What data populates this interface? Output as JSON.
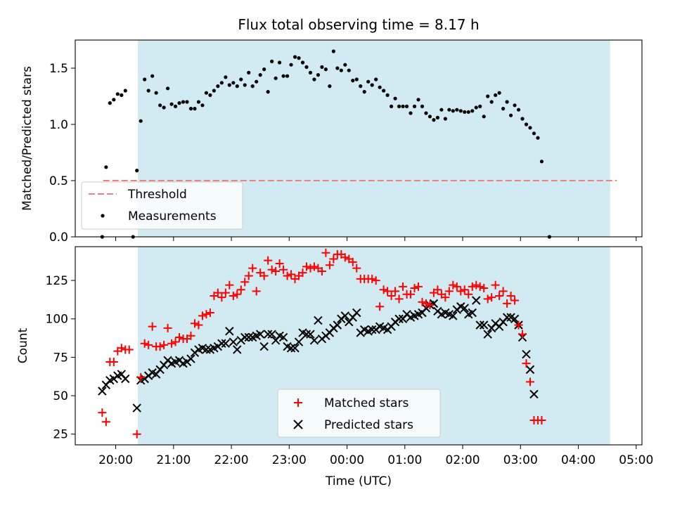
{
  "title": "Flux total observing time = 8.17 h",
  "colors": {
    "shade": "#add8e6",
    "threshold": "#f08080",
    "measurements": "#000000",
    "matched": "#ff0000",
    "predicted": "#000000"
  },
  "chart_data": [
    {
      "type": "scatter",
      "ylabel": "Matched/Predicted stars",
      "ylim": [
        0,
        1.75
      ],
      "yticks": [
        "0.0",
        "0.5",
        "1.0",
        "1.5"
      ],
      "xlim_hours": [
        19.3,
        29.1
      ],
      "shaded_x": [
        "20:23",
        "04:33"
      ],
      "legend": {
        "placement": "lower-left",
        "threshold": "Threshold",
        "measurements": "Measurements"
      },
      "threshold": {
        "value": 0.5,
        "x": [
          "19:47",
          "04:40"
        ]
      },
      "measurements": [
        [
          "19:46",
          0.0
        ],
        [
          "19:50",
          0.62
        ],
        [
          "19:54",
          1.19
        ],
        [
          "19:58",
          1.22
        ],
        [
          "20:02",
          1.27
        ],
        [
          "20:06",
          1.26
        ],
        [
          "20:10",
          1.3
        ],
        [
          "20:18",
          0.0
        ],
        [
          "20:22",
          0.59
        ],
        [
          "20:26",
          1.03
        ],
        [
          "20:30",
          1.4
        ],
        [
          "20:34",
          1.3
        ],
        [
          "20:38",
          1.43
        ],
        [
          "20:42",
          1.28
        ],
        [
          "20:46",
          1.17
        ],
        [
          "20:50",
          1.15
        ],
        [
          "20:54",
          1.32
        ],
        [
          "20:58",
          1.18
        ],
        [
          "21:02",
          1.16
        ],
        [
          "21:06",
          1.19
        ],
        [
          "21:10",
          1.2
        ],
        [
          "21:14",
          1.2
        ],
        [
          "21:18",
          1.14
        ],
        [
          "21:22",
          1.14
        ],
        [
          "21:26",
          1.2
        ],
        [
          "21:30",
          1.17
        ],
        [
          "21:34",
          1.28
        ],
        [
          "21:38",
          1.26
        ],
        [
          "21:42",
          1.3
        ],
        [
          "21:46",
          1.34
        ],
        [
          "21:50",
          1.37
        ],
        [
          "21:54",
          1.42
        ],
        [
          "21:58",
          1.35
        ],
        [
          "22:02",
          1.37
        ],
        [
          "22:06",
          1.34
        ],
        [
          "22:10",
          1.4
        ],
        [
          "22:14",
          1.35
        ],
        [
          "22:18",
          1.46
        ],
        [
          "22:22",
          1.34
        ],
        [
          "22:26",
          1.38
        ],
        [
          "22:30",
          1.44
        ],
        [
          "22:34",
          1.49
        ],
        [
          "22:38",
          1.29
        ],
        [
          "22:42",
          1.56
        ],
        [
          "22:46",
          1.41
        ],
        [
          "22:50",
          1.55
        ],
        [
          "22:54",
          1.43
        ],
        [
          "22:58",
          1.43
        ],
        [
          "23:02",
          1.53
        ],
        [
          "23:06",
          1.6
        ],
        [
          "23:10",
          1.59
        ],
        [
          "23:14",
          1.55
        ],
        [
          "23:18",
          1.51
        ],
        [
          "23:22",
          1.46
        ],
        [
          "23:26",
          1.4
        ],
        [
          "23:30",
          1.44
        ],
        [
          "23:34",
          1.51
        ],
        [
          "23:38",
          1.49
        ],
        [
          "23:42",
          1.34
        ],
        [
          "23:46",
          1.65
        ],
        [
          "23:50",
          1.5
        ],
        [
          "23:54",
          1.48
        ],
        [
          "23:58",
          1.53
        ],
        [
          "00:02",
          1.48
        ],
        [
          "00:06",
          1.39
        ],
        [
          "00:10",
          1.4
        ],
        [
          "00:14",
          1.34
        ],
        [
          "00:18",
          1.29
        ],
        [
          "00:22",
          1.38
        ],
        [
          "00:26",
          1.35
        ],
        [
          "00:30",
          1.4
        ],
        [
          "00:34",
          1.33
        ],
        [
          "00:38",
          1.3
        ],
        [
          "00:42",
          1.26
        ],
        [
          "00:46",
          1.16
        ],
        [
          "00:50",
          1.23
        ],
        [
          "00:54",
          1.16
        ],
        [
          "00:58",
          1.16
        ],
        [
          "01:02",
          1.16
        ],
        [
          "01:06",
          1.1
        ],
        [
          "01:10",
          1.16
        ],
        [
          "01:14",
          1.22
        ],
        [
          "01:18",
          1.16
        ],
        [
          "01:22",
          1.1
        ],
        [
          "01:26",
          1.07
        ],
        [
          "01:30",
          1.04
        ],
        [
          "01:34",
          1.06
        ],
        [
          "01:38",
          1.13
        ],
        [
          "01:42",
          1.05
        ],
        [
          "01:46",
          1.13
        ],
        [
          "01:50",
          1.12
        ],
        [
          "01:54",
          1.13
        ],
        [
          "01:58",
          1.12
        ],
        [
          "02:02",
          1.11
        ],
        [
          "02:06",
          1.11
        ],
        [
          "02:10",
          1.12
        ],
        [
          "02:14",
          1.15
        ],
        [
          "02:18",
          1.16
        ],
        [
          "02:22",
          1.07
        ],
        [
          "02:26",
          1.25
        ],
        [
          "02:30",
          1.2
        ],
        [
          "02:34",
          1.26
        ],
        [
          "02:38",
          1.28
        ],
        [
          "02:42",
          1.14
        ],
        [
          "02:46",
          1.2
        ],
        [
          "02:50",
          1.08
        ],
        [
          "02:54",
          1.17
        ],
        [
          "02:58",
          1.13
        ],
        [
          "03:02",
          1.05
        ],
        [
          "03:06",
          1.0
        ],
        [
          "03:10",
          0.97
        ],
        [
          "03:14",
          0.92
        ],
        [
          "03:18",
          0.88
        ],
        [
          "03:22",
          0.67
        ],
        [
          "03:30",
          0.0
        ]
      ]
    },
    {
      "type": "scatter",
      "xlabel": "Time (UTC)",
      "ylabel": "Count",
      "ylim": [
        18,
        147
      ],
      "yticks": [
        "25",
        "50",
        "75",
        "100",
        "125"
      ],
      "xticks": [
        "20:00",
        "21:00",
        "22:00",
        "23:00",
        "00:00",
        "01:00",
        "02:00",
        "03:00",
        "04:00",
        "05:00"
      ],
      "xlim_hours": [
        19.3,
        29.1
      ],
      "shaded_x": [
        "20:23",
        "04:33"
      ],
      "legend": {
        "placement": "lower-center",
        "matched": "Matched stars",
        "predicted": "Predicted stars"
      },
      "matched_stars": [
        [
          "19:46",
          39
        ],
        [
          "19:50",
          33
        ],
        [
          "19:54",
          72
        ],
        [
          "19:58",
          72
        ],
        [
          "20:02",
          79
        ],
        [
          "20:06",
          81
        ],
        [
          "20:10",
          80
        ],
        [
          "20:14",
          80
        ],
        [
          "20:22",
          25
        ],
        [
          "20:26",
          62
        ],
        [
          "20:30",
          84
        ],
        [
          "20:34",
          83
        ],
        [
          "20:38",
          95
        ],
        [
          "20:42",
          82
        ],
        [
          "20:46",
          82
        ],
        [
          "20:50",
          83
        ],
        [
          "20:54",
          94
        ],
        [
          "20:58",
          84
        ],
        [
          "21:02",
          85
        ],
        [
          "21:06",
          88
        ],
        [
          "21:10",
          87
        ],
        [
          "21:14",
          87
        ],
        [
          "21:18",
          89
        ],
        [
          "21:22",
          97
        ],
        [
          "21:26",
          96
        ],
        [
          "21:30",
          102
        ],
        [
          "21:34",
          103
        ],
        [
          "21:38",
          104
        ],
        [
          "21:42",
          115
        ],
        [
          "21:46",
          117
        ],
        [
          "21:50",
          114
        ],
        [
          "21:54",
          117
        ],
        [
          "21:58",
          122
        ],
        [
          "22:02",
          115
        ],
        [
          "22:06",
          116
        ],
        [
          "22:10",
          119
        ],
        [
          "22:14",
          124
        ],
        [
          "22:18",
          128
        ],
        [
          "22:22",
          133
        ],
        [
          "22:26",
          118
        ],
        [
          "22:30",
          130
        ],
        [
          "22:34",
          128
        ],
        [
          "22:38",
          138
        ],
        [
          "22:42",
          132
        ],
        [
          "22:46",
          131
        ],
        [
          "22:50",
          136
        ],
        [
          "22:54",
          132
        ],
        [
          "22:58",
          128
        ],
        [
          "23:02",
          129
        ],
        [
          "23:06",
          126
        ],
        [
          "23:10",
          128
        ],
        [
          "23:14",
          130
        ],
        [
          "23:18",
          134
        ],
        [
          "23:22",
          133
        ],
        [
          "23:26",
          134
        ],
        [
          "23:30",
          133
        ],
        [
          "23:34",
          131
        ],
        [
          "23:38",
          143
        ],
        [
          "23:42",
          135
        ],
        [
          "23:46",
          139
        ],
        [
          "23:50",
          142
        ],
        [
          "23:54",
          142
        ],
        [
          "23:58",
          140
        ],
        [
          "00:02",
          139
        ],
        [
          "00:06",
          137
        ],
        [
          "00:10",
          133
        ],
        [
          "00:14",
          126
        ],
        [
          "00:18",
          126
        ],
        [
          "00:22",
          126
        ],
        [
          "00:26",
          126
        ],
        [
          "00:30",
          125
        ],
        [
          "00:34",
          108
        ],
        [
          "00:38",
          119
        ],
        [
          "00:42",
          118
        ],
        [
          "00:46",
          115
        ],
        [
          "00:50",
          118
        ],
        [
          "00:54",
          113
        ],
        [
          "00:58",
          121
        ],
        [
          "01:02",
          116
        ],
        [
          "01:06",
          116
        ],
        [
          "01:10",
          120
        ],
        [
          "01:14",
          121
        ],
        [
          "01:18",
          111
        ],
        [
          "01:22",
          110
        ],
        [
          "01:26",
          109
        ],
        [
          "01:30",
          117
        ],
        [
          "01:34",
          119
        ],
        [
          "01:38",
          116
        ],
        [
          "01:42",
          114
        ],
        [
          "01:46",
          118
        ],
        [
          "01:50",
          122
        ],
        [
          "01:54",
          121
        ],
        [
          "01:58",
          118
        ],
        [
          "02:02",
          119
        ],
        [
          "02:06",
          116
        ],
        [
          "02:10",
          121
        ],
        [
          "02:14",
          122
        ],
        [
          "02:18",
          121
        ],
        [
          "02:22",
          120
        ],
        [
          "02:26",
          113
        ],
        [
          "02:30",
          114
        ],
        [
          "02:34",
          122
        ],
        [
          "02:38",
          115
        ],
        [
          "02:42",
          118
        ],
        [
          "02:46",
          110
        ],
        [
          "02:50",
          115
        ],
        [
          "02:54",
          112
        ],
        [
          "02:58",
          96
        ],
        [
          "03:02",
          90
        ],
        [
          "03:06",
          71
        ],
        [
          "03:10",
          59
        ],
        [
          "03:14",
          34
        ],
        [
          "03:18",
          34
        ],
        [
          "03:22",
          34
        ]
      ],
      "predicted_stars": [
        [
          "19:46",
          53
        ],
        [
          "19:50",
          57
        ],
        [
          "19:54",
          60
        ],
        [
          "19:58",
          61
        ],
        [
          "20:02",
          63
        ],
        [
          "20:06",
          64
        ],
        [
          "20:10",
          61
        ],
        [
          "20:22",
          42
        ],
        [
          "20:26",
          60
        ],
        [
          "20:30",
          61
        ],
        [
          "20:34",
          63
        ],
        [
          "20:38",
          65
        ],
        [
          "20:42",
          64
        ],
        [
          "20:46",
          67
        ],
        [
          "20:50",
          70
        ],
        [
          "20:54",
          73
        ],
        [
          "20:58",
          71
        ],
        [
          "21:02",
          72
        ],
        [
          "21:06",
          73
        ],
        [
          "21:10",
          71
        ],
        [
          "21:14",
          72
        ],
        [
          "21:18",
          74
        ],
        [
          "21:22",
          78
        ],
        [
          "21:26",
          80
        ],
        [
          "21:30",
          81
        ],
        [
          "21:34",
          80
        ],
        [
          "21:38",
          80
        ],
        [
          "21:42",
          81
        ],
        [
          "21:46",
          82
        ],
        [
          "21:50",
          84
        ],
        [
          "21:54",
          84
        ],
        [
          "21:58",
          92
        ],
        [
          "22:02",
          85
        ],
        [
          "22:06",
          80
        ],
        [
          "22:10",
          86
        ],
        [
          "22:14",
          88
        ],
        [
          "22:18",
          88
        ],
        [
          "22:22",
          88
        ],
        [
          "22:26",
          89
        ],
        [
          "22:30",
          90
        ],
        [
          "22:34",
          82
        ],
        [
          "22:38",
          90
        ],
        [
          "22:42",
          90
        ],
        [
          "22:46",
          86
        ],
        [
          "22:50",
          89
        ],
        [
          "22:54",
          88
        ],
        [
          "22:58",
          82
        ],
        [
          "23:02",
          81
        ],
        [
          "23:06",
          81
        ],
        [
          "23:10",
          85
        ],
        [
          "23:14",
          91
        ],
        [
          "23:18",
          90
        ],
        [
          "23:22",
          90
        ],
        [
          "23:26",
          86
        ],
        [
          "23:30",
          99
        ],
        [
          "23:34",
          87
        ],
        [
          "23:38",
          89
        ],
        [
          "23:42",
          91
        ],
        [
          "23:46",
          94
        ],
        [
          "23:50",
          96
        ],
        [
          "23:54",
          100
        ],
        [
          "23:58",
          102
        ],
        [
          "00:02",
          98
        ],
        [
          "00:06",
          101
        ],
        [
          "00:10",
          104
        ],
        [
          "00:14",
          91
        ],
        [
          "00:18",
          93
        ],
        [
          "00:22",
          92
        ],
        [
          "00:26",
          93
        ],
        [
          "00:30",
          93
        ],
        [
          "00:34",
          95
        ],
        [
          "00:38",
          94
        ],
        [
          "00:42",
          93
        ],
        [
          "00:46",
          95
        ],
        [
          "00:50",
          98
        ],
        [
          "00:54",
          100
        ],
        [
          "00:58",
          100
        ],
        [
          "01:02",
          103
        ],
        [
          "01:06",
          101
        ],
        [
          "01:10",
          102
        ],
        [
          "01:14",
          103
        ],
        [
          "01:18",
          104
        ],
        [
          "01:22",
          107
        ],
        [
          "01:26",
          109
        ],
        [
          "01:30",
          110
        ],
        [
          "01:34",
          105
        ],
        [
          "01:38",
          103
        ],
        [
          "01:42",
          104
        ],
        [
          "01:46",
          103
        ],
        [
          "01:50",
          102
        ],
        [
          "01:54",
          106
        ],
        [
          "01:58",
          108
        ],
        [
          "02:02",
          107
        ],
        [
          "02:06",
          103
        ],
        [
          "02:10",
          104
        ],
        [
          "02:14",
          112
        ],
        [
          "02:18",
          96
        ],
        [
          "02:22",
          96
        ],
        [
          "02:26",
          90
        ],
        [
          "02:30",
          94
        ],
        [
          "02:34",
          97
        ],
        [
          "02:38",
          95
        ],
        [
          "02:42",
          98
        ],
        [
          "02:46",
          101
        ],
        [
          "02:50",
          101
        ],
        [
          "02:54",
          100
        ],
        [
          "02:58",
          96
        ],
        [
          "03:02",
          88
        ],
        [
          "03:06",
          77
        ],
        [
          "03:10",
          67
        ],
        [
          "03:14",
          51
        ]
      ]
    }
  ]
}
